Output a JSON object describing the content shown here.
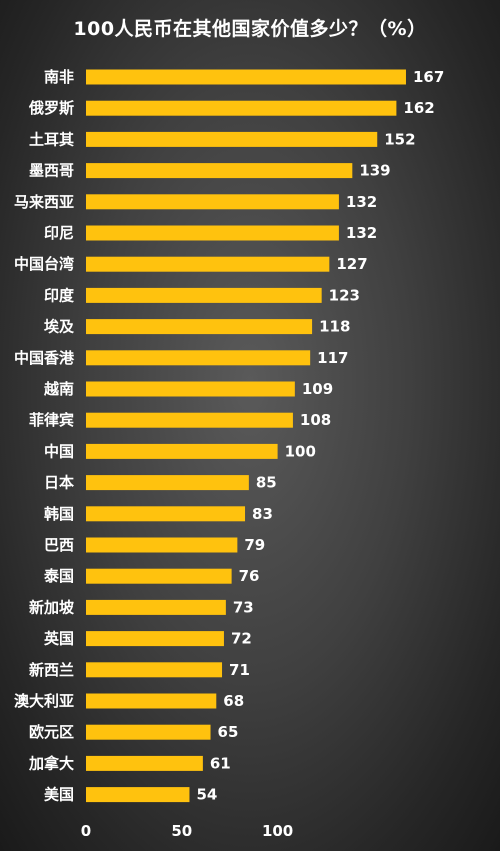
{
  "chart_data": {
    "type": "bar",
    "orientation": "horizontal",
    "title": "100人民币在其他国家价值多少？（%）",
    "categories": [
      "南非",
      "俄罗斯",
      "土耳其",
      "墨西哥",
      "马来西亚",
      "印尼",
      "中国台湾",
      "印度",
      "埃及",
      "中国香港",
      "越南",
      "菲律宾",
      "中国",
      "日本",
      "韩国",
      "巴西",
      "泰国",
      "新加坡",
      "英国",
      "新西兰",
      "澳大利亚",
      "欧元区",
      "加拿大",
      "美国"
    ],
    "values": [
      167,
      162,
      152,
      139,
      132,
      132,
      127,
      123,
      118,
      117,
      109,
      108,
      100,
      85,
      83,
      79,
      76,
      73,
      72,
      71,
      68,
      65,
      61,
      54
    ],
    "xlim": [
      0,
      200
    ],
    "xticks": [
      "0",
      "50",
      "100"
    ],
    "grid": false,
    "legend": "none",
    "colors": {
      "bar": "#ffc20e",
      "text": "#ffffff"
    }
  }
}
